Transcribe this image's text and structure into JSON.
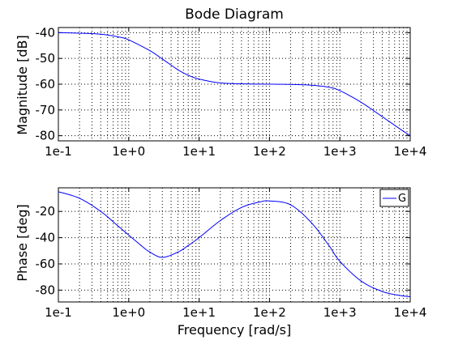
{
  "chart_data": [
    {
      "type": "line",
      "title": "Bode Diagram",
      "xlabel": "",
      "ylabel": "Magnitude [dB]",
      "xscale": "log",
      "xlim": [
        0.1,
        10000
      ],
      "ylim": [
        -82,
        -38
      ],
      "xticks": [
        0.1,
        1,
        10,
        100,
        1000,
        10000
      ],
      "xtick_labels": [
        "1e-1",
        "1e+0",
        "1e+1",
        "1e+2",
        "1e+3",
        "1e+4"
      ],
      "yticks": [
        -40,
        -50,
        -60,
        -70,
        -80
      ],
      "ytick_labels": [
        "-40",
        "-50",
        "-60",
        "-70",
        "-80"
      ],
      "grid": true,
      "series": [
        {
          "color": "#0000ff",
          "x": [
            0.1,
            0.2,
            0.4,
            0.7,
            1,
            2,
            3,
            5,
            7,
            10,
            20,
            50,
            100,
            200,
            400,
            700,
            1000,
            2000,
            4000,
            7000,
            10000
          ],
          "y": [
            -40,
            -40.2,
            -40.6,
            -41.6,
            -42.8,
            -47,
            -50.2,
            -54.4,
            -56.5,
            -58,
            -59.5,
            -59.9,
            -60,
            -60.1,
            -60.4,
            -61.2,
            -62.5,
            -67,
            -72.6,
            -77.2,
            -80
          ]
        }
      ]
    },
    {
      "type": "line",
      "title": "",
      "xlabel": "Frequency [rad/s]",
      "ylabel": "Phase [deg]",
      "xscale": "log",
      "xlim": [
        0.1,
        10000
      ],
      "ylim": [
        -89,
        -2
      ],
      "xticks": [
        0.1,
        1,
        10,
        100,
        1000,
        10000
      ],
      "xtick_labels": [
        "1e-1",
        "1e+0",
        "1e+1",
        "1e+2",
        "1e+3",
        "1e+4"
      ],
      "yticks": [
        -20,
        -40,
        -60,
        -80
      ],
      "ytick_labels": [
        "-20",
        "-40",
        "-60",
        "-80"
      ],
      "grid": true,
      "legend": {
        "position": "top-right",
        "entries": [
          "G"
        ]
      },
      "series": [
        {
          "name": "G",
          "color": "#0000ff",
          "x": [
            0.1,
            0.2,
            0.4,
            0.7,
            1,
            1.5,
            2,
            3,
            5,
            7,
            10,
            20,
            40,
            70,
            100,
            200,
            400,
            700,
            1000,
            2000,
            4000,
            7000,
            10000
          ],
          "y": [
            -5,
            -10,
            -20,
            -31,
            -38,
            -46,
            -51,
            -55,
            -51,
            -46,
            -40,
            -27,
            -17,
            -13,
            -12,
            -15,
            -29,
            -46,
            -58,
            -73,
            -81,
            -84,
            -85
          ]
        }
      ]
    }
  ]
}
